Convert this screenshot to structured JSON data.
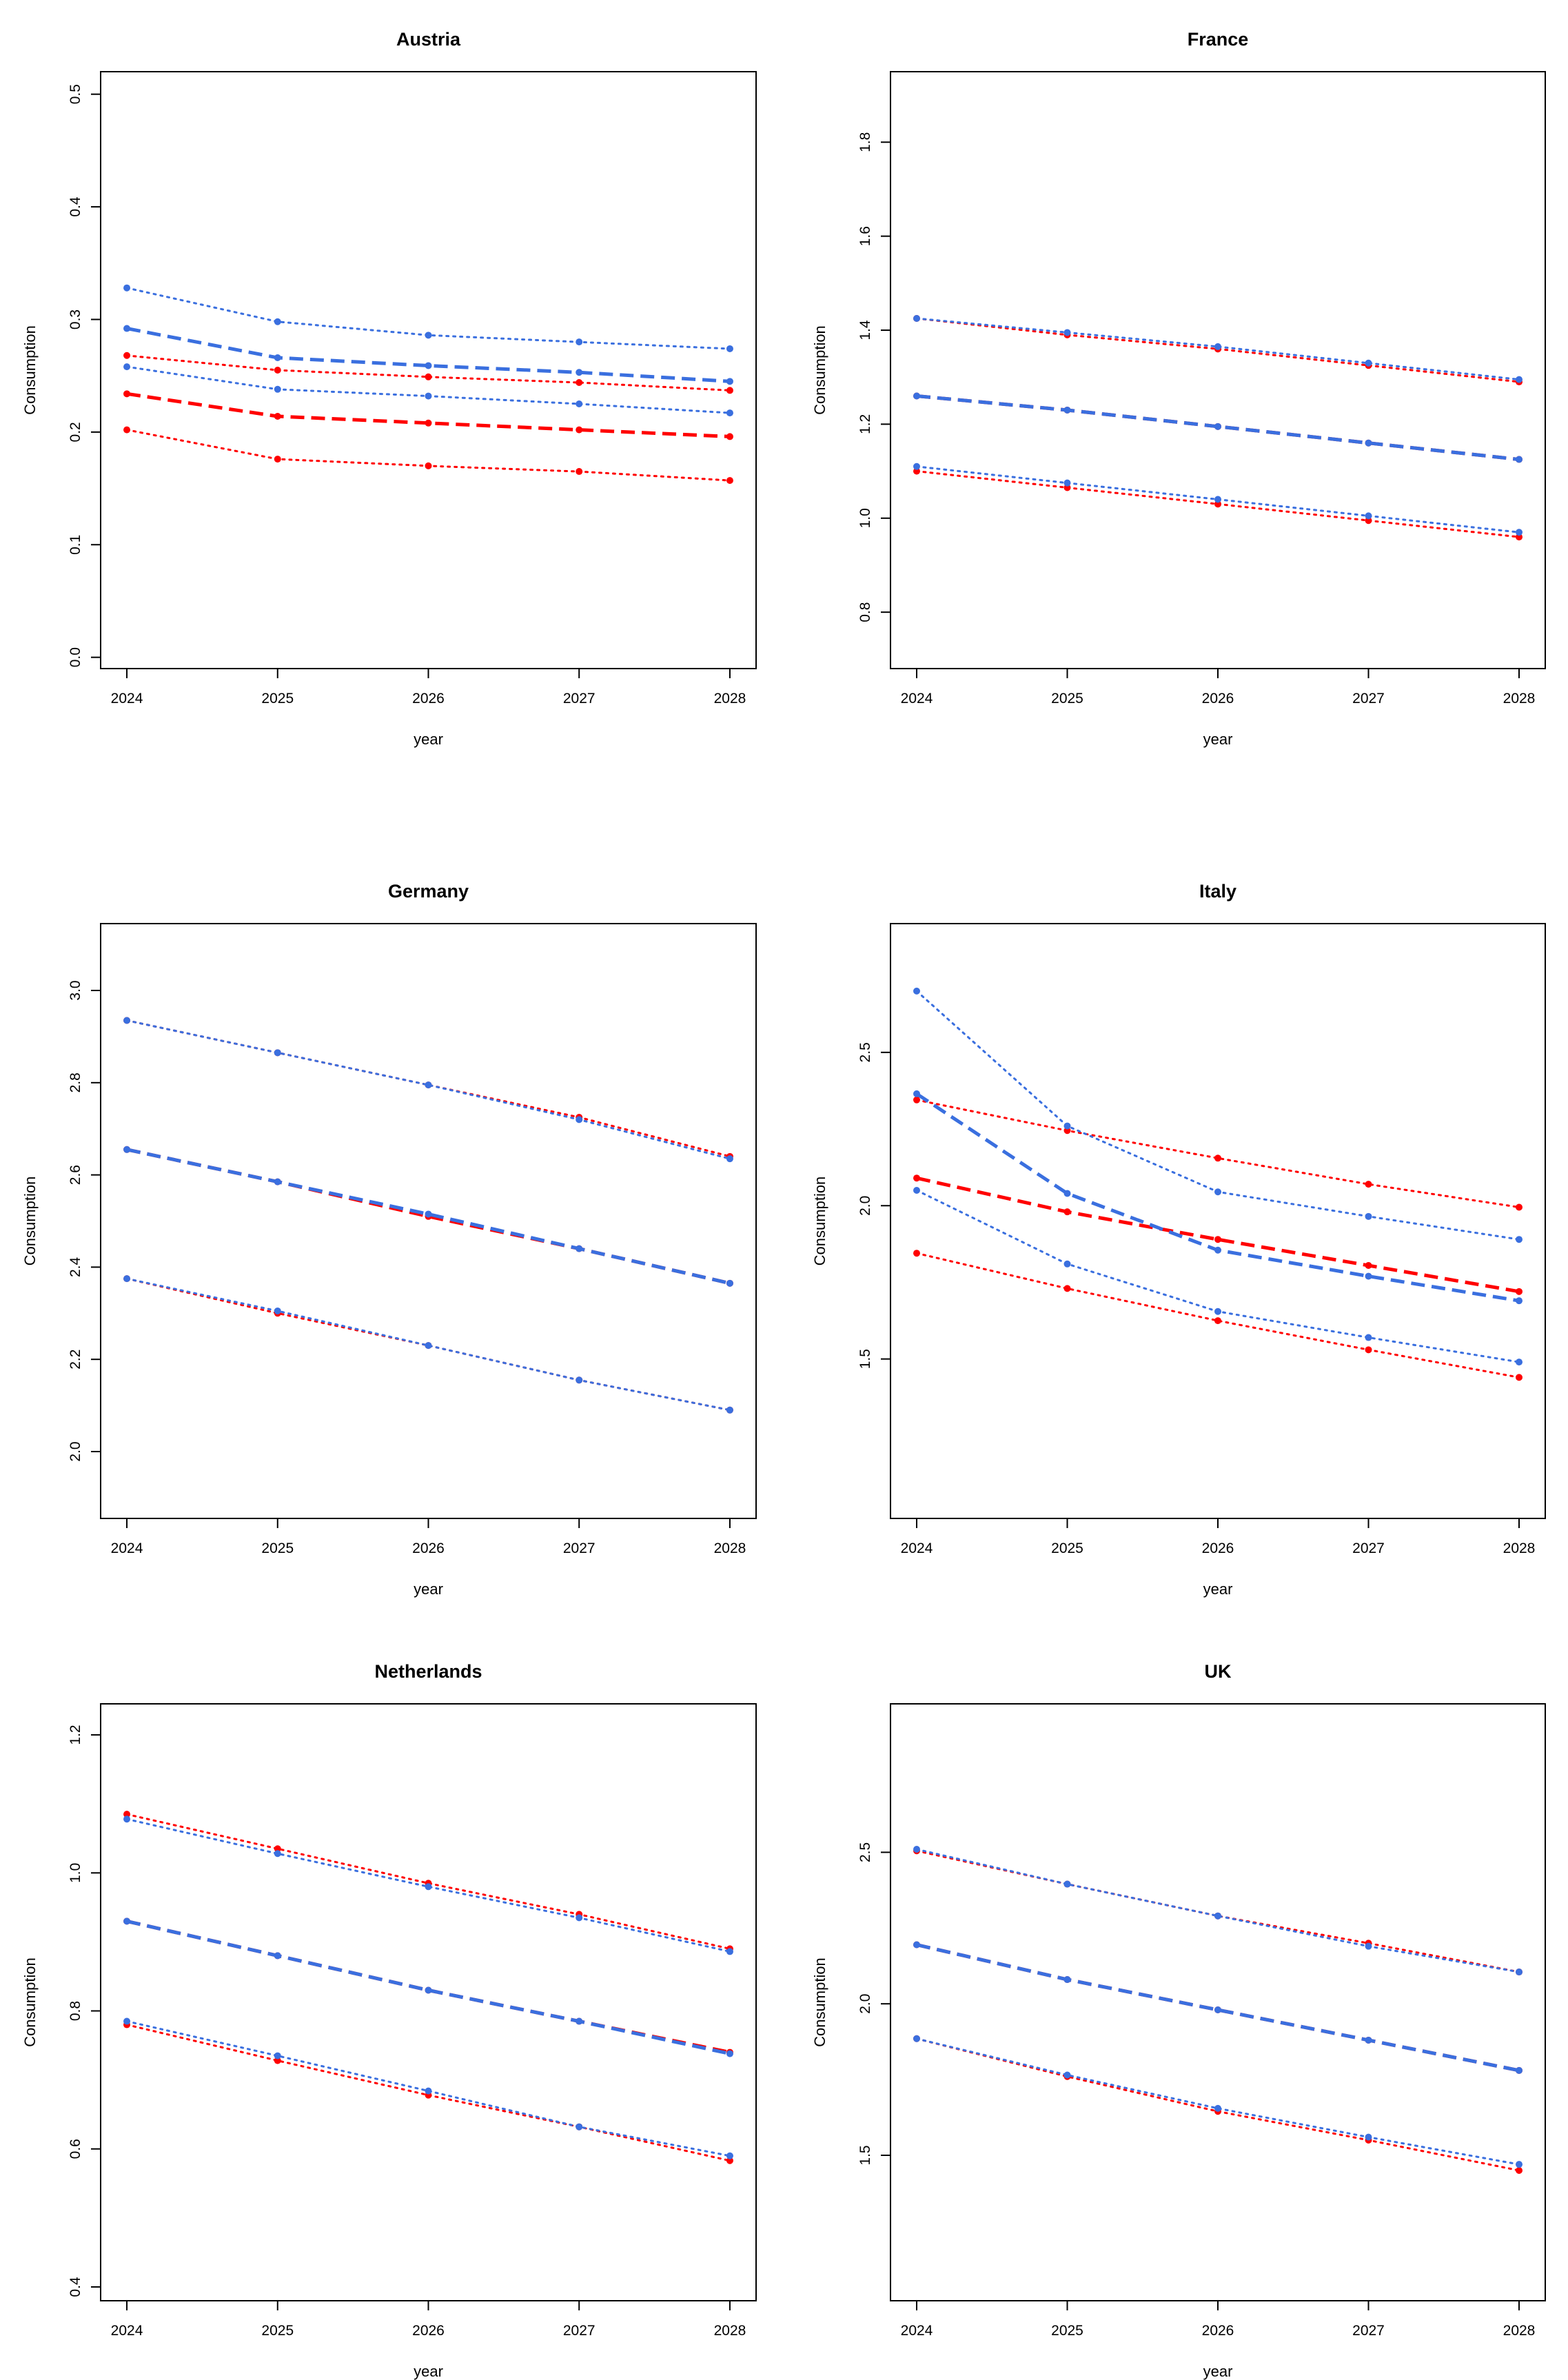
{
  "colors": {
    "red": "#ff0000",
    "blue": "#3a6fdf",
    "frame": "#000000"
  },
  "chart_data": [
    {
      "type": "line",
      "title": "Austria",
      "xlabel": "year",
      "ylabel": "Consumption",
      "x": [
        "2024",
        "2025",
        "2026",
        "2027",
        "2028"
      ],
      "ylim": [
        -0.01,
        0.52
      ],
      "yticks": [
        "0.0",
        "0.1",
        "0.2",
        "0.3",
        "0.4",
        "0.5"
      ],
      "series": [
        {
          "name": "red-mid",
          "color": "red",
          "style": "dashed",
          "values": [
            0.234,
            0.214,
            0.208,
            0.202,
            0.196
          ]
        },
        {
          "name": "red-upper",
          "color": "red",
          "style": "dotted",
          "values": [
            0.268,
            0.255,
            0.249,
            0.244,
            0.237
          ]
        },
        {
          "name": "red-lower",
          "color": "red",
          "style": "dotted",
          "values": [
            0.202,
            0.176,
            0.17,
            0.165,
            0.157
          ]
        },
        {
          "name": "blue-mid",
          "color": "blue",
          "style": "dashed",
          "values": [
            0.292,
            0.266,
            0.259,
            0.253,
            0.245
          ]
        },
        {
          "name": "blue-upper",
          "color": "blue",
          "style": "dotted",
          "values": [
            0.328,
            0.298,
            0.286,
            0.28,
            0.274
          ]
        },
        {
          "name": "blue-lower",
          "color": "blue",
          "style": "dotted",
          "values": [
            0.258,
            0.238,
            0.232,
            0.225,
            0.217
          ]
        }
      ]
    },
    {
      "type": "line",
      "title": "France",
      "xlabel": "year",
      "ylabel": "Consumption",
      "x": [
        "2024",
        "2025",
        "2026",
        "2027",
        "2028"
      ],
      "ylim": [
        0.68,
        1.95
      ],
      "yticks": [
        "0.8",
        "1.0",
        "1.2",
        "1.4",
        "1.6",
        "1.8"
      ],
      "series": [
        {
          "name": "red-mid",
          "color": "red",
          "style": "dashed",
          "values": [
            1.26,
            1.23,
            1.195,
            1.16,
            1.125
          ]
        },
        {
          "name": "red-upper",
          "color": "red",
          "style": "dotted",
          "values": [
            1.425,
            1.39,
            1.36,
            1.325,
            1.29
          ]
        },
        {
          "name": "red-lower",
          "color": "red",
          "style": "dotted",
          "values": [
            1.1,
            1.065,
            1.03,
            0.995,
            0.96
          ]
        },
        {
          "name": "blue-mid",
          "color": "blue",
          "style": "dashed",
          "values": [
            1.26,
            1.23,
            1.195,
            1.16,
            1.125
          ]
        },
        {
          "name": "blue-upper",
          "color": "blue",
          "style": "dotted",
          "values": [
            1.425,
            1.395,
            1.365,
            1.33,
            1.295
          ]
        },
        {
          "name": "blue-lower",
          "color": "blue",
          "style": "dotted",
          "values": [
            1.11,
            1.075,
            1.04,
            1.005,
            0.97
          ]
        }
      ]
    },
    {
      "type": "line",
      "title": "Germany",
      "xlabel": "year",
      "ylabel": "Consumption",
      "x": [
        "2024",
        "2025",
        "2026",
        "2027",
        "2028"
      ],
      "ylim": [
        1.855,
        3.145
      ],
      "yticks": [
        "2.0",
        "2.2",
        "2.4",
        "2.6",
        "2.8",
        "3.0"
      ],
      "series": [
        {
          "name": "red-mid",
          "color": "red",
          "style": "dashed",
          "values": [
            2.655,
            2.585,
            2.51,
            2.44,
            2.365
          ]
        },
        {
          "name": "red-upper",
          "color": "red",
          "style": "dotted",
          "values": [
            2.935,
            2.865,
            2.795,
            2.725,
            2.64
          ]
        },
        {
          "name": "red-lower",
          "color": "red",
          "style": "dotted",
          "values": [
            2.375,
            2.3,
            2.23,
            2.155,
            2.09
          ]
        },
        {
          "name": "blue-mid",
          "color": "blue",
          "style": "dashed",
          "values": [
            2.655,
            2.585,
            2.515,
            2.44,
            2.365
          ]
        },
        {
          "name": "blue-upper",
          "color": "blue",
          "style": "dotted",
          "values": [
            2.935,
            2.865,
            2.795,
            2.72,
            2.635
          ]
        },
        {
          "name": "blue-lower",
          "color": "blue",
          "style": "dotted",
          "values": [
            2.375,
            2.305,
            2.23,
            2.155,
            2.09
          ]
        }
      ]
    },
    {
      "type": "line",
      "title": "Italy",
      "xlabel": "year",
      "ylabel": "Consumption",
      "x": [
        "2024",
        "2025",
        "2026",
        "2027",
        "2028"
      ],
      "ylim": [
        0.98,
        2.92
      ],
      "yticks": [
        "1.5",
        "2.0",
        "2.5"
      ],
      "series": [
        {
          "name": "red-mid",
          "color": "red",
          "style": "dashed",
          "values": [
            2.09,
            1.98,
            1.89,
            1.805,
            1.72
          ]
        },
        {
          "name": "red-upper",
          "color": "red",
          "style": "dotted",
          "values": [
            2.345,
            2.245,
            2.155,
            2.07,
            1.995
          ]
        },
        {
          "name": "red-lower",
          "color": "red",
          "style": "dotted",
          "values": [
            1.845,
            1.73,
            1.625,
            1.53,
            1.44
          ]
        },
        {
          "name": "blue-mid",
          "color": "blue",
          "style": "dashed",
          "values": [
            2.365,
            2.04,
            1.855,
            1.77,
            1.69
          ]
        },
        {
          "name": "blue-upper",
          "color": "blue",
          "style": "dotted",
          "values": [
            2.7,
            2.26,
            2.045,
            1.965,
            1.89
          ]
        },
        {
          "name": "blue-lower",
          "color": "blue",
          "style": "dotted",
          "values": [
            2.05,
            1.81,
            1.655,
            1.57,
            1.49
          ]
        }
      ]
    },
    {
      "type": "line",
      "title": "Netherlands",
      "xlabel": "year",
      "ylabel": "Consumption",
      "x": [
        "2024",
        "2025",
        "2026",
        "2027",
        "2028"
      ],
      "ylim": [
        0.38,
        1.245
      ],
      "yticks": [
        "0.4",
        "0.6",
        "0.8",
        "1.0",
        "1.2"
      ],
      "series": [
        {
          "name": "red-mid",
          "color": "red",
          "style": "dashed",
          "values": [
            0.93,
            0.88,
            0.83,
            0.785,
            0.74
          ]
        },
        {
          "name": "red-upper",
          "color": "red",
          "style": "dotted",
          "values": [
            1.085,
            1.035,
            0.985,
            0.94,
            0.89
          ]
        },
        {
          "name": "red-lower",
          "color": "red",
          "style": "dotted",
          "values": [
            0.78,
            0.728,
            0.678,
            0.632,
            0.583
          ]
        },
        {
          "name": "blue-mid",
          "color": "blue",
          "style": "dashed",
          "values": [
            0.93,
            0.88,
            0.83,
            0.785,
            0.738
          ]
        },
        {
          "name": "blue-upper",
          "color": "blue",
          "style": "dotted",
          "values": [
            1.078,
            1.028,
            0.98,
            0.935,
            0.886
          ]
        },
        {
          "name": "blue-lower",
          "color": "blue",
          "style": "dotted",
          "values": [
            0.785,
            0.735,
            0.684,
            0.632,
            0.59
          ]
        }
      ]
    },
    {
      "type": "line",
      "title": "UK",
      "xlabel": "year",
      "ylabel": "Consumption",
      "x": [
        "2024",
        "2025",
        "2026",
        "2027",
        "2028"
      ],
      "ylim": [
        1.02,
        2.99
      ],
      "yticks": [
        "1.5",
        "2.0",
        "2.5"
      ],
      "series": [
        {
          "name": "red-mid",
          "color": "red",
          "style": "dashed",
          "values": [
            2.195,
            2.08,
            1.98,
            1.88,
            1.78
          ]
        },
        {
          "name": "red-upper",
          "color": "red",
          "style": "dotted",
          "values": [
            2.505,
            2.395,
            2.29,
            2.2,
            2.105
          ]
        },
        {
          "name": "red-lower",
          "color": "red",
          "style": "dotted",
          "values": [
            1.885,
            1.76,
            1.645,
            1.55,
            1.45
          ]
        },
        {
          "name": "blue-mid",
          "color": "blue",
          "style": "dashed",
          "values": [
            2.195,
            2.08,
            1.98,
            1.88,
            1.78
          ]
        },
        {
          "name": "blue-upper",
          "color": "blue",
          "style": "dotted",
          "values": [
            2.51,
            2.395,
            2.29,
            2.19,
            2.105
          ]
        },
        {
          "name": "blue-lower",
          "color": "blue",
          "style": "dotted",
          "values": [
            1.885,
            1.765,
            1.655,
            1.56,
            1.47
          ]
        }
      ]
    }
  ]
}
